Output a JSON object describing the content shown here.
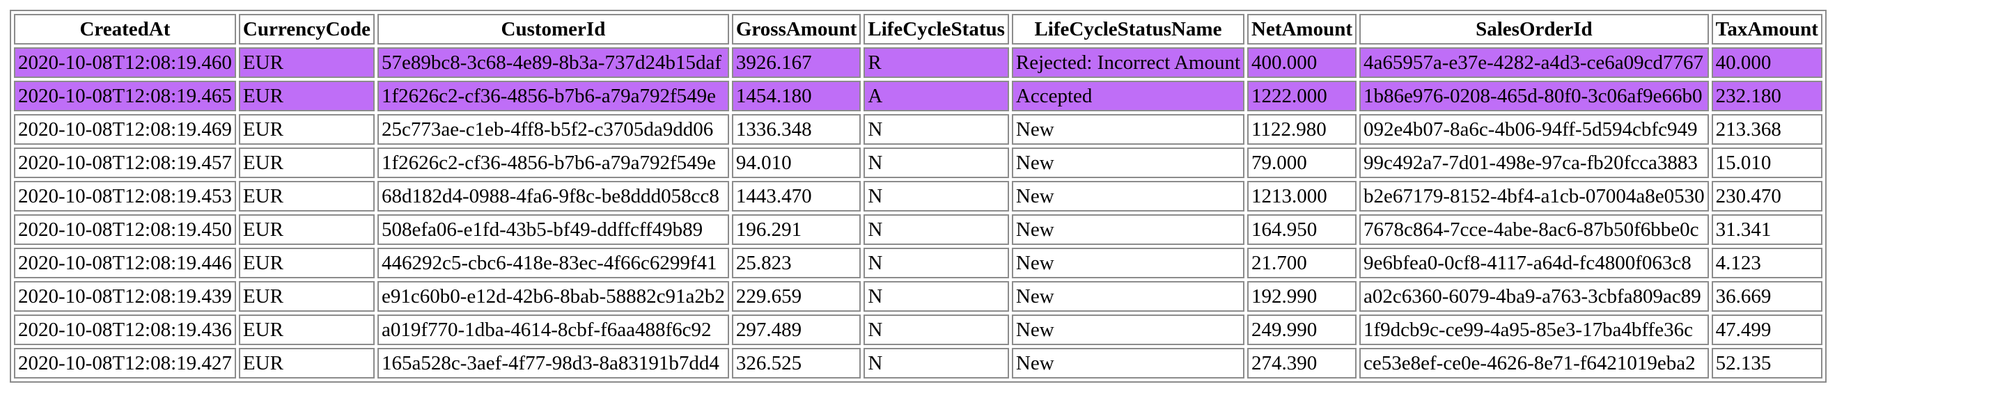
{
  "table": {
    "columns": [
      "CreatedAt",
      "CurrencyCode",
      "CustomerId",
      "GrossAmount",
      "LifeCycleStatus",
      "LifeCycleStatusName",
      "NetAmount",
      "SalesOrderId",
      "TaxAmount"
    ],
    "highlight_color": "#bf6ef7",
    "rows": [
      {
        "selected": true,
        "cells": [
          "2020-10-08T12:08:19.460",
          "EUR",
          "57e89bc8-3c68-4e89-8b3a-737d24b15daf",
          "3926.167",
          "R",
          "Rejected: Incorrect Amount",
          "400.000",
          "4a65957a-e37e-4282-a4d3-ce6a09cd7767",
          "40.000"
        ]
      },
      {
        "selected": true,
        "cells": [
          "2020-10-08T12:08:19.465",
          "EUR",
          "1f2626c2-cf36-4856-b7b6-a79a792f549e",
          "1454.180",
          "A",
          "Accepted",
          "1222.000",
          "1b86e976-0208-465d-80f0-3c06af9e66b0",
          "232.180"
        ]
      },
      {
        "selected": false,
        "cells": [
          "2020-10-08T12:08:19.469",
          "EUR",
          "25c773ae-c1eb-4ff8-b5f2-c3705da9dd06",
          "1336.348",
          "N",
          "New",
          "1122.980",
          "092e4b07-8a6c-4b06-94ff-5d594cbfc949",
          "213.368"
        ]
      },
      {
        "selected": false,
        "cells": [
          "2020-10-08T12:08:19.457",
          "EUR",
          "1f2626c2-cf36-4856-b7b6-a79a792f549e",
          "94.010",
          "N",
          "New",
          "79.000",
          "99c492a7-7d01-498e-97ca-fb20fcca3883",
          "15.010"
        ]
      },
      {
        "selected": false,
        "cells": [
          "2020-10-08T12:08:19.453",
          "EUR",
          "68d182d4-0988-4fa6-9f8c-be8ddd058cc8",
          "1443.470",
          "N",
          "New",
          "1213.000",
          "b2e67179-8152-4bf4-a1cb-07004a8e0530",
          "230.470"
        ]
      },
      {
        "selected": false,
        "cells": [
          "2020-10-08T12:08:19.450",
          "EUR",
          "508efa06-e1fd-43b5-bf49-ddffcff49b89",
          "196.291",
          "N",
          "New",
          "164.950",
          "7678c864-7cce-4abe-8ac6-87b50f6bbe0c",
          "31.341"
        ]
      },
      {
        "selected": false,
        "cells": [
          "2020-10-08T12:08:19.446",
          "EUR",
          "446292c5-cbc6-418e-83ec-4f66c6299f41",
          "25.823",
          "N",
          "New",
          "21.700",
          "9e6bfea0-0cf8-4117-a64d-fc4800f063c8",
          "4.123"
        ]
      },
      {
        "selected": false,
        "cells": [
          "2020-10-08T12:08:19.439",
          "EUR",
          "e91c60b0-e12d-42b6-8bab-58882c91a2b2",
          "229.659",
          "N",
          "New",
          "192.990",
          "a02c6360-6079-4ba9-a763-3cbfa809ac89",
          "36.669"
        ]
      },
      {
        "selected": false,
        "cells": [
          "2020-10-08T12:08:19.436",
          "EUR",
          "a019f770-1dba-4614-8cbf-f6aa488f6c92",
          "297.489",
          "N",
          "New",
          "249.990",
          "1f9dcb9c-ce99-4a95-85e3-17ba4bffe36c",
          "47.499"
        ]
      },
      {
        "selected": false,
        "cells": [
          "2020-10-08T12:08:19.427",
          "EUR",
          "165a528c-3aef-4f77-98d3-8a83191b7dd4",
          "326.525",
          "N",
          "New",
          "274.390",
          "ce53e8ef-ce0e-4626-8e71-f6421019eba2",
          "52.135"
        ]
      }
    ]
  }
}
